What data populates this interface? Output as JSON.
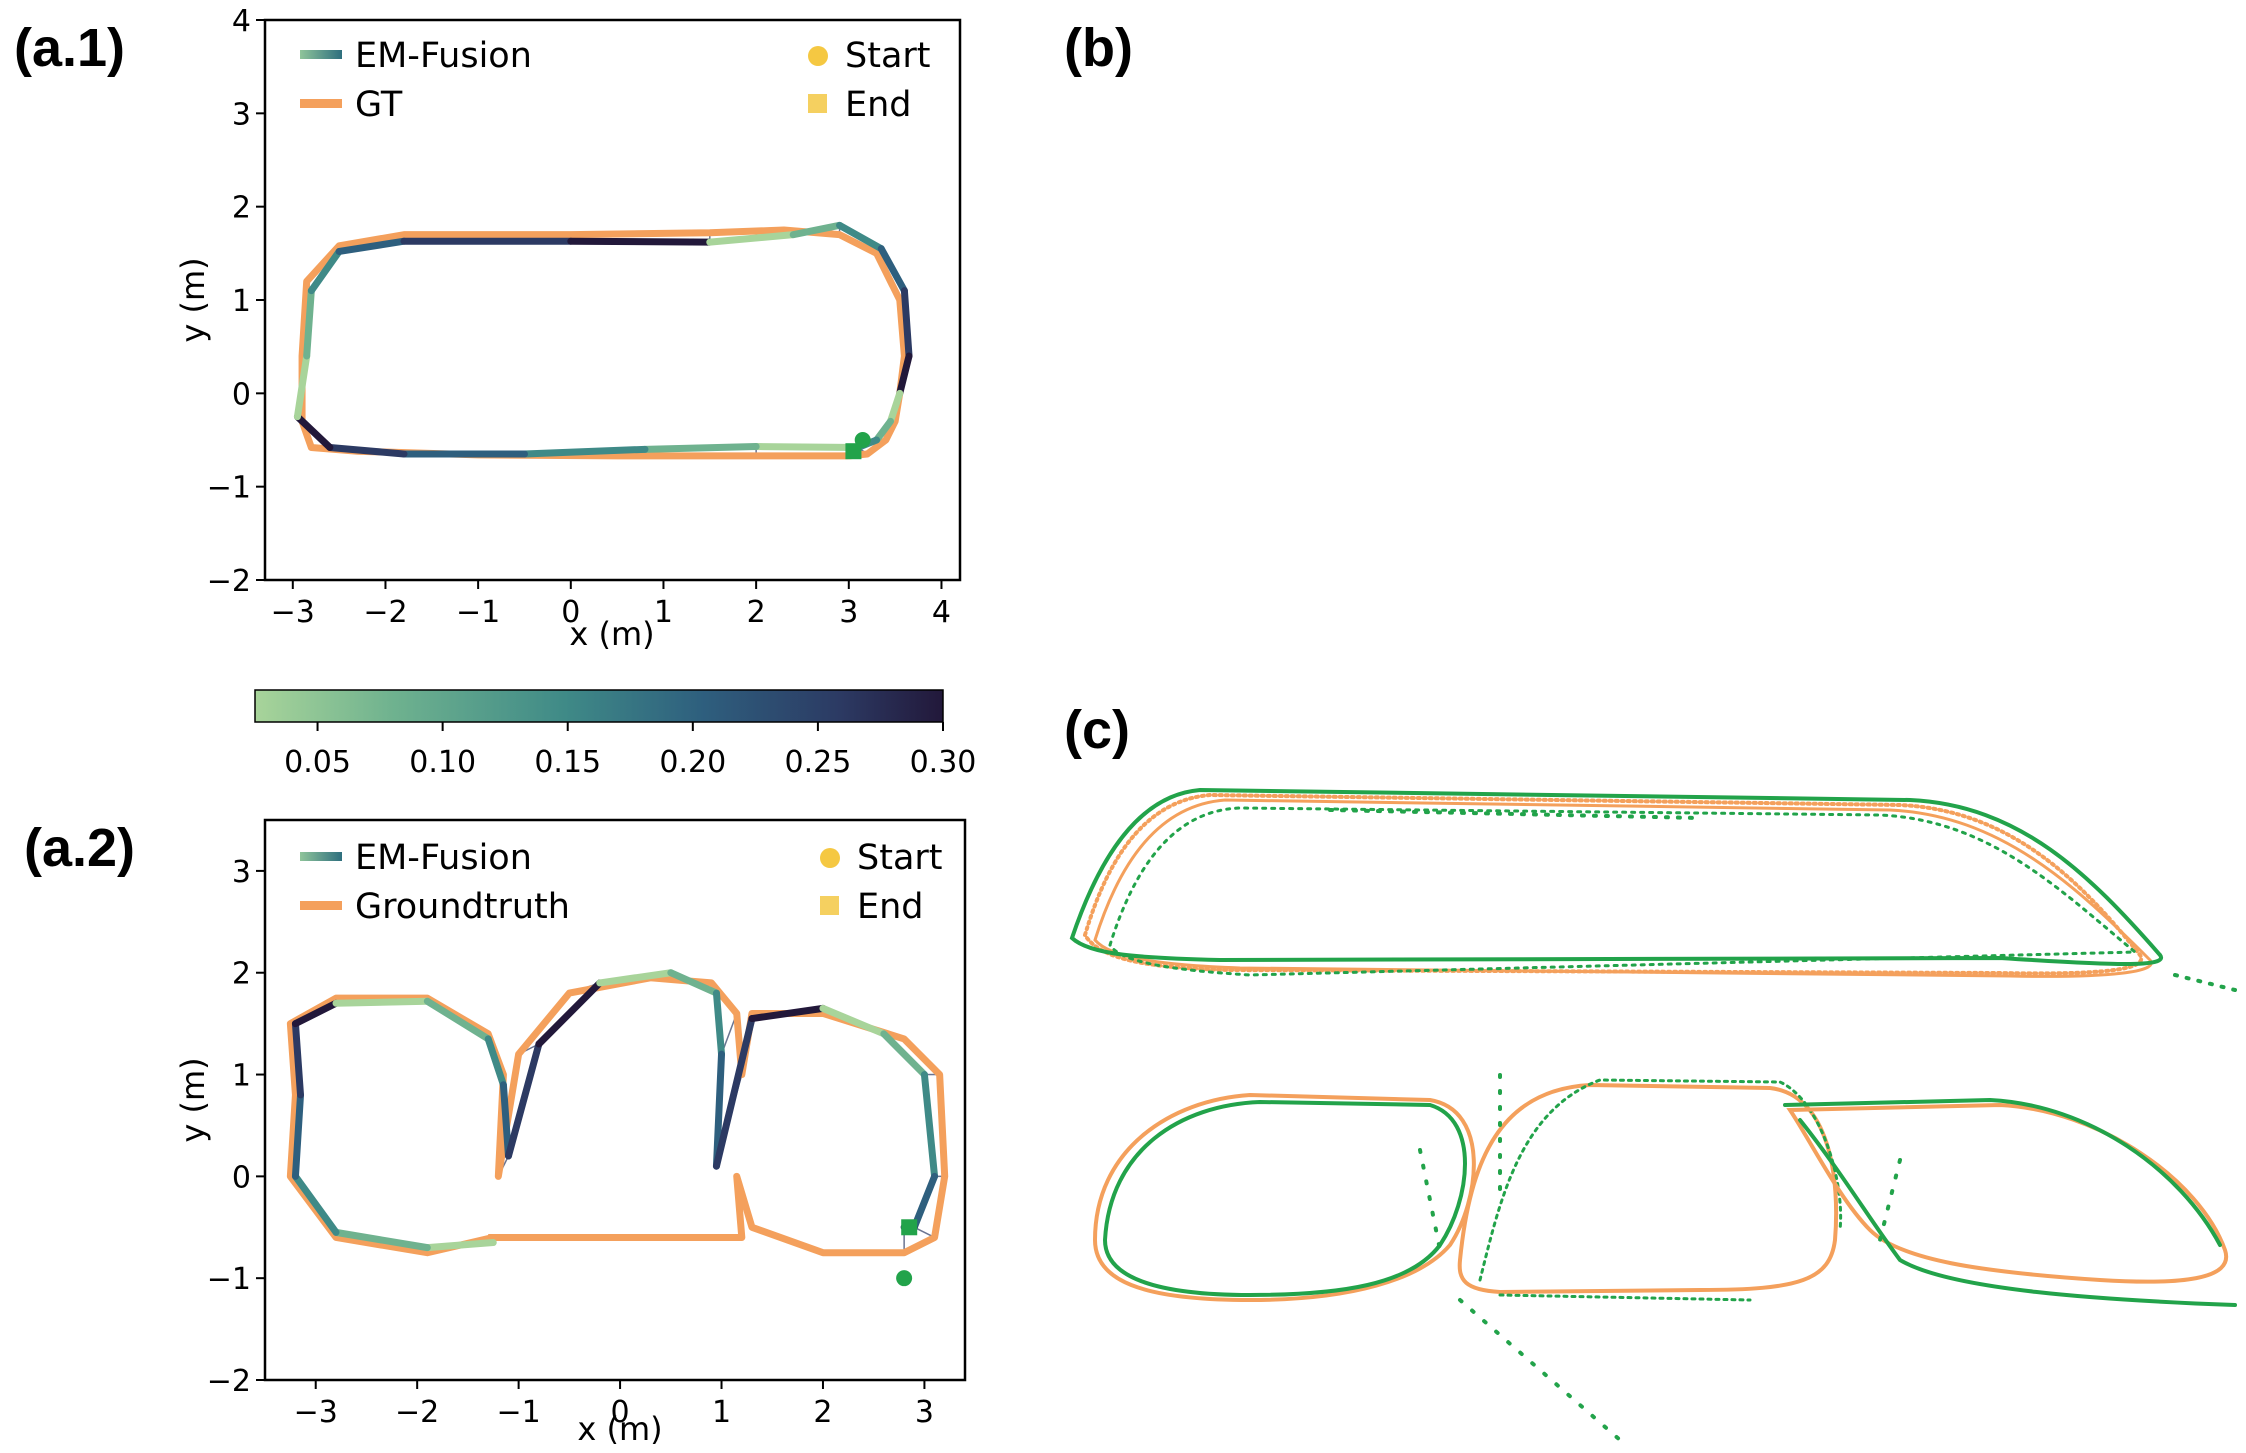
{
  "panels": {
    "a1": "(a.1)",
    "b": "(b)",
    "c": "(c)",
    "a2": "(a.2)"
  },
  "colors": {
    "gt": "#F4A05C",
    "est": "#22A34A",
    "start": "#F5C842",
    "end": "#F5D060",
    "cmap": [
      "#A8D49A",
      "#6FB28F",
      "#3F8A87",
      "#2E5F7E",
      "#2C3A63",
      "#22183A"
    ]
  },
  "legend_a1": {
    "series_est": "EM-Fusion",
    "series_gt": "GT",
    "start": "Start",
    "end": "End"
  },
  "legend_a2": {
    "series_est": "EM-Fusion",
    "series_gt": "Groundtruth",
    "start": "Start",
    "end": "End"
  },
  "colorbar": {
    "min": 0.025,
    "max": 0.3,
    "ticks": [
      "0.05",
      "0.10",
      "0.15",
      "0.20",
      "0.25",
      "0.30"
    ]
  },
  "chart_data": [
    {
      "id": "a1",
      "type": "line",
      "xlabel": "x (m)",
      "ylabel": "y (m)",
      "xlim": [
        -3.3,
        4.2
      ],
      "ylim": [
        -2,
        4
      ],
      "xticks": [
        -3,
        -2,
        -1,
        0,
        1,
        2,
        3,
        4
      ],
      "yticks": [
        -2,
        -1,
        0,
        1,
        2,
        3,
        4
      ],
      "xticklabels": [
        "−3",
        "−2",
        "−1",
        "0",
        "1",
        "2",
        "3",
        "4"
      ],
      "yticklabels": [
        "−2",
        "−1",
        "0",
        "1",
        "2",
        "3",
        "4"
      ],
      "grid": false,
      "legend": "top",
      "series": [
        {
          "name": "GT",
          "x": [
            3.0,
            2.0,
            0.5,
            -1.0,
            -2.3,
            -2.8,
            -2.9,
            -2.9,
            -2.85,
            -2.5,
            -1.8,
            0.0,
            1.5,
            2.3,
            2.9,
            3.3,
            3.55,
            3.6,
            3.55,
            3.5,
            3.4,
            3.2,
            3.0
          ],
          "y": [
            -0.67,
            -0.67,
            -0.67,
            -0.66,
            -0.62,
            -0.58,
            -0.3,
            0.4,
            1.2,
            1.58,
            1.7,
            1.7,
            1.72,
            1.75,
            1.7,
            1.5,
            1.0,
            0.4,
            0.0,
            -0.3,
            -0.5,
            -0.65,
            -0.67
          ]
        },
        {
          "name": "EM-Fusion",
          "x": [
            3.1,
            2.0,
            0.8,
            -0.5,
            -1.8,
            -2.6,
            -2.95,
            -2.85,
            -2.8,
            -2.5,
            -1.8,
            0.0,
            1.5,
            2.4,
            2.9,
            3.35,
            3.6,
            3.65,
            3.55,
            3.45,
            3.3,
            3.1
          ],
          "y": [
            -0.58,
            -0.57,
            -0.6,
            -0.65,
            -0.65,
            -0.58,
            -0.25,
            0.4,
            1.1,
            1.52,
            1.63,
            1.63,
            1.62,
            1.7,
            1.8,
            1.55,
            1.1,
            0.4,
            0.0,
            -0.3,
            -0.5,
            -0.58
          ]
        }
      ],
      "start": [
        3.15,
        -0.5
      ],
      "end": [
        3.05,
        -0.62
      ]
    },
    {
      "id": "a2",
      "type": "line",
      "xlabel": "x (m)",
      "ylabel": "y (m)",
      "xlim": [
        -3.5,
        3.4
      ],
      "ylim": [
        -2,
        3.5
      ],
      "xticks": [
        -3,
        -2,
        -1,
        0,
        1,
        2,
        3
      ],
      "yticks": [
        -2,
        -1,
        0,
        1,
        2,
        3
      ],
      "xticklabels": [
        "−3",
        "−2",
        "−1",
        "0",
        "1",
        "2",
        "3"
      ],
      "yticklabels": [
        "−2",
        "−1",
        "0",
        "1",
        "2",
        "3"
      ],
      "grid": false,
      "legend": "top",
      "series": [
        {
          "name": "Groundtruth",
          "x": [
            -1.25,
            -1.9,
            -2.8,
            -3.25,
            -3.2,
            -3.25,
            -2.8,
            -1.9,
            -1.3,
            -1.15,
            -1.2,
            -1.0,
            -0.5,
            0.3,
            0.9,
            1.15,
            1.2,
            1.3,
            2.0,
            2.8,
            3.15,
            3.2,
            3.1,
            2.8,
            2.0,
            1.3,
            1.15,
            1.2,
            0.5,
            -1.0,
            -1.3
          ],
          "y": [
            -0.6,
            -0.75,
            -0.6,
            0.0,
            0.8,
            1.5,
            1.75,
            1.75,
            1.4,
            1.0,
            0.0,
            1.2,
            1.8,
            1.95,
            1.9,
            1.6,
            1.0,
            1.6,
            1.6,
            1.35,
            1.0,
            0.0,
            -0.6,
            -0.75,
            -0.75,
            -0.5,
            0.0,
            -0.6,
            -0.6,
            -0.6,
            -0.6
          ]
        },
        {
          "name": "EM-Fusion",
          "x": [
            -1.25,
            -1.9,
            -2.8,
            -3.2,
            -3.15,
            -3.2,
            -2.8,
            -1.9,
            -1.3,
            -1.15,
            -1.1,
            -0.8,
            -0.2,
            0.5,
            0.95,
            1.0,
            0.95,
            1.3,
            2.0,
            2.6,
            3.0,
            3.1,
            2.9,
            2.8
          ],
          "y": [
            -0.65,
            -0.7,
            -0.55,
            0.0,
            0.8,
            1.5,
            1.7,
            1.72,
            1.35,
            0.9,
            0.2,
            1.3,
            1.9,
            2.0,
            1.8,
            1.2,
            0.1,
            1.55,
            1.65,
            1.4,
            1.0,
            0.0,
            -0.5,
            -0.5
          ]
        }
      ],
      "start": [
        2.8,
        -1.0
      ],
      "end": [
        2.85,
        -0.5
      ]
    }
  ]
}
